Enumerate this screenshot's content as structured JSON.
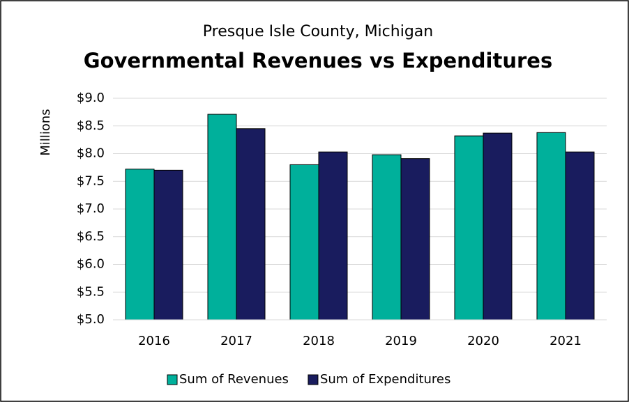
{
  "chart_data": {
    "type": "bar",
    "subtitle": "Presque Isle County, Michigan",
    "title": "Governmental Revenues vs Expenditures",
    "y_label": "Millions",
    "categories": [
      "2016",
      "2017",
      "2018",
      "2019",
      "2020",
      "2021"
    ],
    "series": [
      {
        "name": "Sum of Revenues",
        "color": "#00b09b",
        "values": [
          7.72,
          8.71,
          7.8,
          7.98,
          8.32,
          8.38
        ]
      },
      {
        "name": "Sum of Expenditures",
        "color": "#191c5e",
        "values": [
          7.7,
          8.45,
          8.03,
          7.91,
          8.37,
          8.03
        ]
      }
    ],
    "ylim": [
      5.0,
      9.0
    ],
    "yticks": [
      {
        "value": 5.0,
        "label": "$5.0"
      },
      {
        "value": 5.5,
        "label": "$5.5"
      },
      {
        "value": 6.0,
        "label": "$6.0"
      },
      {
        "value": 6.5,
        "label": "$6.5"
      },
      {
        "value": 7.0,
        "label": "$7.0"
      },
      {
        "value": 7.5,
        "label": "$7.5"
      },
      {
        "value": 8.0,
        "label": "$8.0"
      },
      {
        "value": 8.5,
        "label": "$8.5"
      },
      {
        "value": 9.0,
        "label": "$9.0"
      }
    ],
    "grid": true,
    "legend": "bottom"
  }
}
